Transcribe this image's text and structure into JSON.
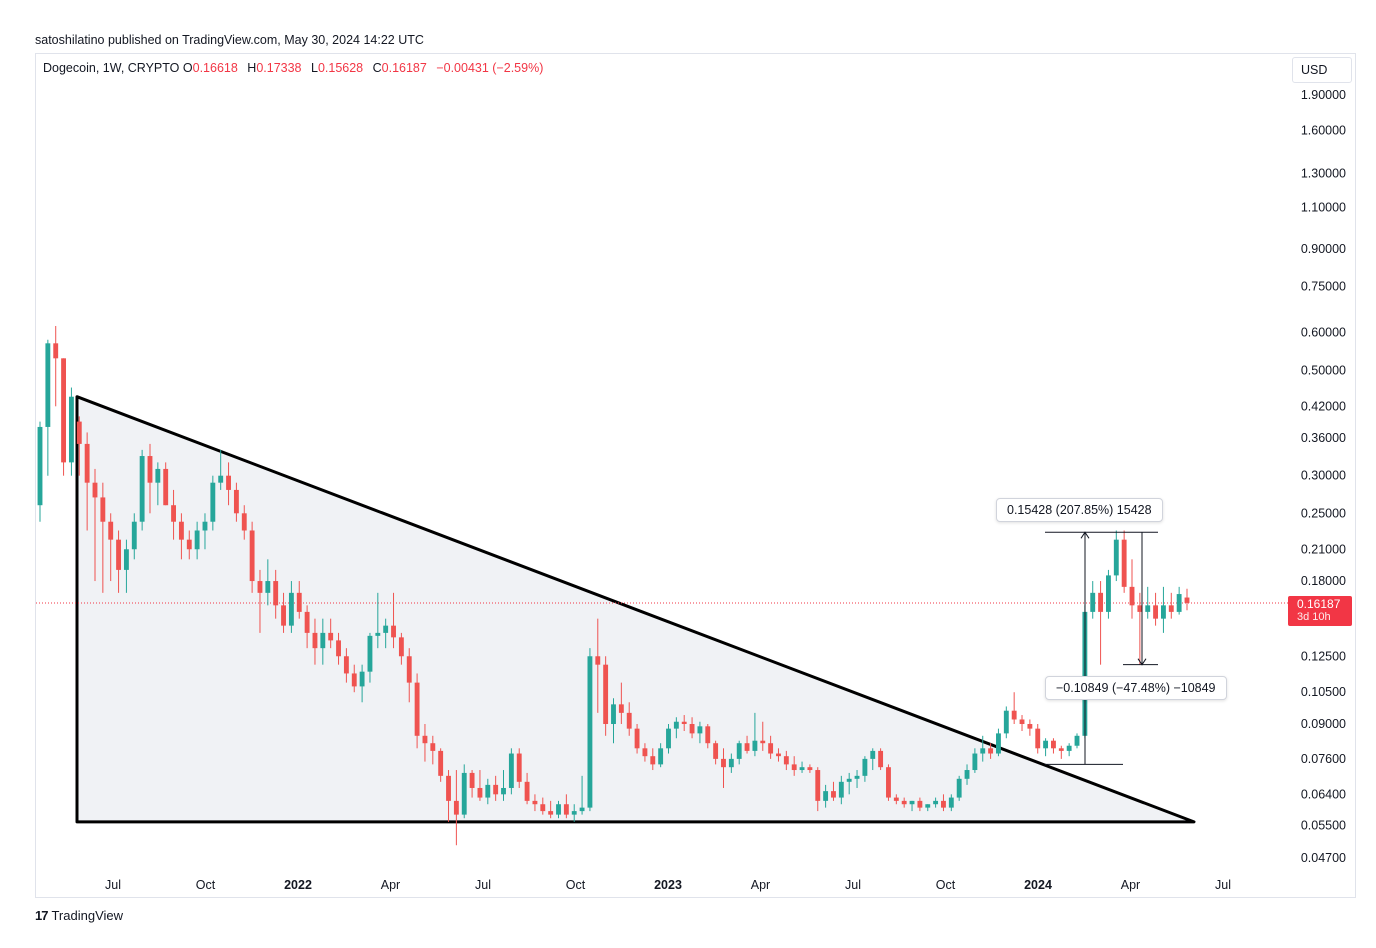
{
  "header": {
    "publish_line": "satoshilatino published on TradingView.com, May 30, 2024 14:22 UTC"
  },
  "legend": {
    "symbol": "Dogecoin, 1W, CRYPTO",
    "open_label": "O",
    "open": "0.16618",
    "high_label": "H",
    "high": "0.17338",
    "low_label": "L",
    "low": "0.15628",
    "close_label": "C",
    "close": "0.16187",
    "change": "−0.00431 (−2.59%)"
  },
  "currency_label": "USD",
  "last_price": {
    "value": "0.16187",
    "countdown": "3d 10h"
  },
  "measure_up": {
    "text": "0.15428 (207.85%) 15428"
  },
  "measure_down": {
    "text": "−0.10849 (−47.48%) −10849"
  },
  "brand": {
    "logo": "17",
    "name": "TradingView"
  },
  "colors": {
    "up": "#26a69a",
    "down": "#ef5350",
    "accent_red": "#f23645",
    "triangle_fill": "#f0f2f5",
    "line": "#000000"
  },
  "chart_data": {
    "type": "candlestick",
    "title": "Dogecoin, 1W, CRYPTO",
    "scale": "log",
    "y_ticks": [
      "1.90000",
      "1.60000",
      "1.30000",
      "1.10000",
      "0.90000",
      "0.75000",
      "0.60000",
      "0.50000",
      "0.42000",
      "0.36000",
      "0.30000",
      "0.25000",
      "0.21000",
      "0.18000",
      "0.12500",
      "0.10500",
      "0.09000",
      "0.07600",
      "0.06400",
      "0.05500",
      "0.04700"
    ],
    "x_ticks": [
      {
        "label": "Jul",
        "bold": false
      },
      {
        "label": "Oct",
        "bold": false
      },
      {
        "label": "2022",
        "bold": true
      },
      {
        "label": "Apr",
        "bold": false
      },
      {
        "label": "Jul",
        "bold": false
      },
      {
        "label": "Oct",
        "bold": false
      },
      {
        "label": "2023",
        "bold": true
      },
      {
        "label": "Apr",
        "bold": false
      },
      {
        "label": "Jul",
        "bold": false
      },
      {
        "label": "Oct",
        "bold": false
      },
      {
        "label": "2024",
        "bold": true
      },
      {
        "label": "Apr",
        "bold": false
      },
      {
        "label": "Jul",
        "bold": false
      }
    ],
    "triangle": {
      "apex_value": 0.44,
      "base_value": 0.056,
      "note": "descending triangle from May 2021 to mid 2024"
    },
    "measure_up": {
      "from": 0.074,
      "to": 0.228,
      "change": 0.15428,
      "pct": 207.85
    },
    "measure_down": {
      "from": 0.228,
      "to": 0.12,
      "change": -0.10849,
      "pct": -47.48
    },
    "last_value": 0.16187,
    "candles_ohlc": [
      [
        0.26,
        0.39,
        0.24,
        0.38
      ],
      [
        0.38,
        0.58,
        0.3,
        0.57
      ],
      [
        0.57,
        0.62,
        0.42,
        0.53
      ],
      [
        0.53,
        0.53,
        0.3,
        0.32
      ],
      [
        0.32,
        0.46,
        0.3,
        0.44
      ],
      [
        0.39,
        0.4,
        0.3,
        0.35
      ],
      [
        0.35,
        0.37,
        0.23,
        0.29
      ],
      [
        0.29,
        0.31,
        0.18,
        0.27
      ],
      [
        0.27,
        0.29,
        0.17,
        0.24
      ],
      [
        0.24,
        0.25,
        0.18,
        0.22
      ],
      [
        0.22,
        0.23,
        0.17,
        0.19
      ],
      [
        0.19,
        0.22,
        0.17,
        0.21
      ],
      [
        0.21,
        0.25,
        0.2,
        0.24
      ],
      [
        0.24,
        0.34,
        0.23,
        0.33
      ],
      [
        0.33,
        0.35,
        0.25,
        0.29
      ],
      [
        0.29,
        0.32,
        0.26,
        0.31
      ],
      [
        0.31,
        0.32,
        0.26,
        0.26
      ],
      [
        0.26,
        0.28,
        0.22,
        0.24
      ],
      [
        0.24,
        0.25,
        0.2,
        0.22
      ],
      [
        0.22,
        0.23,
        0.2,
        0.21
      ],
      [
        0.21,
        0.24,
        0.2,
        0.23
      ],
      [
        0.23,
        0.25,
        0.21,
        0.24
      ],
      [
        0.24,
        0.3,
        0.23,
        0.29
      ],
      [
        0.29,
        0.34,
        0.28,
        0.3
      ],
      [
        0.3,
        0.32,
        0.26,
        0.28
      ],
      [
        0.28,
        0.29,
        0.24,
        0.25
      ],
      [
        0.25,
        0.26,
        0.22,
        0.23
      ],
      [
        0.23,
        0.24,
        0.17,
        0.18
      ],
      [
        0.18,
        0.19,
        0.14,
        0.17
      ],
      [
        0.17,
        0.2,
        0.16,
        0.18
      ],
      [
        0.18,
        0.19,
        0.15,
        0.16
      ],
      [
        0.16,
        0.17,
        0.14,
        0.145
      ],
      [
        0.145,
        0.18,
        0.14,
        0.17
      ],
      [
        0.17,
        0.18,
        0.15,
        0.155
      ],
      [
        0.155,
        0.16,
        0.13,
        0.14
      ],
      [
        0.14,
        0.15,
        0.12,
        0.13
      ],
      [
        0.13,
        0.15,
        0.12,
        0.14
      ],
      [
        0.14,
        0.15,
        0.13,
        0.135
      ],
      [
        0.135,
        0.14,
        0.12,
        0.125
      ],
      [
        0.125,
        0.13,
        0.11,
        0.115
      ],
      [
        0.115,
        0.12,
        0.105,
        0.108
      ],
      [
        0.108,
        0.12,
        0.1,
        0.116
      ],
      [
        0.116,
        0.14,
        0.11,
        0.138
      ],
      [
        0.138,
        0.17,
        0.13,
        0.14
      ],
      [
        0.14,
        0.15,
        0.13,
        0.145
      ],
      [
        0.145,
        0.17,
        0.13,
        0.137
      ],
      [
        0.137,
        0.14,
        0.12,
        0.125
      ],
      [
        0.125,
        0.13,
        0.1,
        0.11
      ],
      [
        0.11,
        0.115,
        0.08,
        0.085
      ],
      [
        0.085,
        0.09,
        0.075,
        0.082
      ],
      [
        0.082,
        0.085,
        0.074,
        0.079
      ],
      [
        0.079,
        0.08,
        0.068,
        0.07
      ],
      [
        0.07,
        0.072,
        0.056,
        0.062
      ],
      [
        0.062,
        0.072,
        0.05,
        0.058
      ],
      [
        0.058,
        0.074,
        0.057,
        0.071
      ],
      [
        0.071,
        0.072,
        0.063,
        0.066
      ],
      [
        0.066,
        0.072,
        0.062,
        0.063
      ],
      [
        0.063,
        0.069,
        0.061,
        0.067
      ],
      [
        0.067,
        0.07,
        0.062,
        0.064
      ],
      [
        0.064,
        0.072,
        0.062,
        0.066
      ],
      [
        0.066,
        0.08,
        0.064,
        0.078
      ],
      [
        0.078,
        0.08,
        0.066,
        0.068
      ],
      [
        0.068,
        0.071,
        0.061,
        0.062
      ],
      [
        0.062,
        0.064,
        0.059,
        0.061
      ],
      [
        0.061,
        0.063,
        0.058,
        0.059
      ],
      [
        0.059,
        0.062,
        0.057,
        0.058
      ],
      [
        0.058,
        0.062,
        0.057,
        0.061
      ],
      [
        0.061,
        0.064,
        0.057,
        0.058
      ],
      [
        0.058,
        0.061,
        0.056,
        0.059
      ],
      [
        0.059,
        0.07,
        0.058,
        0.06
      ],
      [
        0.06,
        0.13,
        0.059,
        0.125
      ],
      [
        0.125,
        0.15,
        0.095,
        0.12
      ],
      [
        0.12,
        0.125,
        0.085,
        0.09
      ],
      [
        0.09,
        0.102,
        0.082,
        0.099
      ],
      [
        0.099,
        0.11,
        0.09,
        0.095
      ],
      [
        0.095,
        0.1,
        0.085,
        0.088
      ],
      [
        0.088,
        0.09,
        0.078,
        0.08
      ],
      [
        0.08,
        0.082,
        0.075,
        0.077
      ],
      [
        0.077,
        0.08,
        0.072,
        0.074
      ],
      [
        0.074,
        0.082,
        0.073,
        0.08
      ],
      [
        0.08,
        0.09,
        0.078,
        0.088
      ],
      [
        0.088,
        0.093,
        0.084,
        0.091
      ],
      [
        0.091,
        0.094,
        0.087,
        0.09
      ],
      [
        0.09,
        0.093,
        0.084,
        0.086
      ],
      [
        0.086,
        0.091,
        0.082,
        0.089
      ],
      [
        0.089,
        0.09,
        0.08,
        0.082
      ],
      [
        0.082,
        0.083,
        0.074,
        0.076
      ],
      [
        0.076,
        0.08,
        0.066,
        0.073
      ],
      [
        0.073,
        0.078,
        0.071,
        0.076
      ],
      [
        0.076,
        0.083,
        0.074,
        0.082
      ],
      [
        0.082,
        0.085,
        0.078,
        0.079
      ],
      [
        0.079,
        0.095,
        0.077,
        0.083
      ],
      [
        0.083,
        0.091,
        0.079,
        0.082
      ],
      [
        0.082,
        0.085,
        0.076,
        0.078
      ],
      [
        0.078,
        0.08,
        0.075,
        0.077
      ],
      [
        0.077,
        0.079,
        0.072,
        0.074
      ],
      [
        0.074,
        0.077,
        0.07,
        0.072
      ],
      [
        0.072,
        0.075,
        0.071,
        0.073
      ],
      [
        0.073,
        0.074,
        0.071,
        0.072
      ],
      [
        0.072,
        0.073,
        0.059,
        0.062
      ],
      [
        0.062,
        0.067,
        0.06,
        0.065
      ],
      [
        0.065,
        0.068,
        0.062,
        0.063
      ],
      [
        0.063,
        0.07,
        0.061,
        0.068
      ],
      [
        0.068,
        0.071,
        0.064,
        0.069
      ],
      [
        0.069,
        0.072,
        0.066,
        0.07
      ],
      [
        0.07,
        0.077,
        0.068,
        0.076
      ],
      [
        0.076,
        0.08,
        0.072,
        0.079
      ],
      [
        0.079,
        0.08,
        0.072,
        0.073
      ],
      [
        0.073,
        0.074,
        0.062,
        0.063
      ],
      [
        0.063,
        0.064,
        0.061,
        0.062
      ],
      [
        0.062,
        0.063,
        0.06,
        0.061
      ],
      [
        0.061,
        0.062,
        0.059,
        0.062
      ],
      [
        0.062,
        0.063,
        0.059,
        0.06
      ],
      [
        0.06,
        0.061,
        0.059,
        0.061
      ],
      [
        0.061,
        0.063,
        0.06,
        0.062
      ],
      [
        0.062,
        0.064,
        0.059,
        0.06
      ],
      [
        0.06,
        0.064,
        0.059,
        0.063
      ],
      [
        0.063,
        0.07,
        0.062,
        0.069
      ],
      [
        0.069,
        0.074,
        0.067,
        0.072
      ],
      [
        0.072,
        0.08,
        0.071,
        0.078
      ],
      [
        0.078,
        0.085,
        0.075,
        0.08
      ],
      [
        0.08,
        0.082,
        0.076,
        0.078
      ],
      [
        0.078,
        0.088,
        0.077,
        0.086
      ],
      [
        0.086,
        0.098,
        0.084,
        0.096
      ],
      [
        0.096,
        0.105,
        0.09,
        0.092
      ],
      [
        0.092,
        0.094,
        0.087,
        0.09
      ],
      [
        0.09,
        0.092,
        0.085,
        0.088
      ],
      [
        0.088,
        0.09,
        0.078,
        0.08
      ],
      [
        0.08,
        0.084,
        0.077,
        0.083
      ],
      [
        0.083,
        0.084,
        0.078,
        0.08
      ],
      [
        0.08,
        0.081,
        0.076,
        0.079
      ],
      [
        0.079,
        0.082,
        0.077,
        0.081
      ],
      [
        0.081,
        0.086,
        0.08,
        0.085
      ],
      [
        0.085,
        0.16,
        0.084,
        0.155
      ],
      [
        0.155,
        0.18,
        0.15,
        0.17
      ],
      [
        0.17,
        0.18,
        0.12,
        0.155
      ],
      [
        0.155,
        0.19,
        0.15,
        0.185
      ],
      [
        0.185,
        0.23,
        0.18,
        0.22
      ],
      [
        0.22,
        0.23,
        0.17,
        0.175
      ],
      [
        0.175,
        0.2,
        0.15,
        0.16
      ],
      [
        0.16,
        0.17,
        0.12,
        0.155
      ],
      [
        0.155,
        0.175,
        0.15,
        0.16
      ],
      [
        0.16,
        0.17,
        0.145,
        0.15
      ],
      [
        0.15,
        0.175,
        0.14,
        0.16
      ],
      [
        0.16,
        0.17,
        0.15,
        0.155
      ],
      [
        0.155,
        0.175,
        0.153,
        0.169
      ],
      [
        0.16618,
        0.17338,
        0.15628,
        0.16187
      ]
    ]
  }
}
